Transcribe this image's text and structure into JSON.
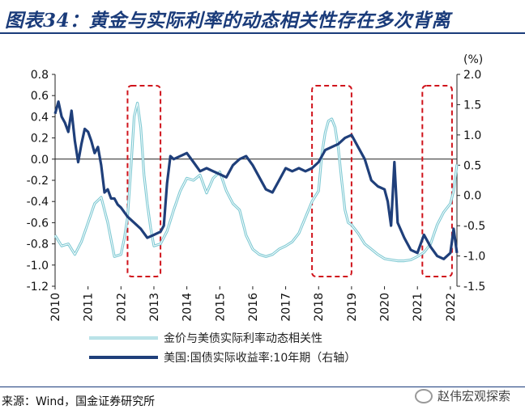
{
  "title": "图表34：黄金与实际利率的动态相关性存在多次背离",
  "source": "来源：Wind，国金证券研究所",
  "watermark": "赵伟宏观探索",
  "colors": {
    "corr": "#7ec9d3",
    "yield": "#1f3f7a",
    "box": "#d0141c",
    "title": "#1a3b7a"
  },
  "chart_data": {
    "type": "line",
    "title": "",
    "unit_right": "(%)",
    "x_ticks": [
      "2010",
      "2011",
      "2012",
      "2013",
      "2014",
      "2015",
      "2016",
      "2017",
      "2018",
      "2019",
      "2020",
      "2021",
      "2022"
    ],
    "left_ylim": [
      -1.2,
      0.8
    ],
    "left_ticks": [
      "0.8",
      "0.6",
      "0.4",
      "0.2",
      "0.0",
      "-0.2",
      "-0.4",
      "-0.6",
      "-0.8",
      "-1.0",
      "-1.2"
    ],
    "right_ylim": [
      -1.5,
      2.0
    ],
    "right_ticks": [
      "2.0",
      "1.5",
      "1.0",
      "0.5",
      "0.0",
      "-0.5",
      "-1.0",
      "-1.5"
    ],
    "series": [
      {
        "name": "金价与美债实际利率动态相关性",
        "axis": "left",
        "x": [
          2010.0,
          2010.2,
          2010.4,
          2010.6,
          2010.8,
          2011.0,
          2011.2,
          2011.4,
          2011.6,
          2011.8,
          2012.0,
          2012.1,
          2012.2,
          2012.3,
          2012.4,
          2012.5,
          2012.6,
          2012.7,
          2012.8,
          2012.9,
          2013.0,
          2013.2,
          2013.4,
          2013.6,
          2013.8,
          2014.0,
          2014.2,
          2014.4,
          2014.6,
          2014.8,
          2015.0,
          2015.2,
          2015.4,
          2015.6,
          2015.8,
          2016.0,
          2016.2,
          2016.4,
          2016.6,
          2016.8,
          2017.0,
          2017.2,
          2017.4,
          2017.6,
          2017.8,
          2018.0,
          2018.1,
          2018.2,
          2018.3,
          2018.4,
          2018.5,
          2018.6,
          2018.7,
          2018.8,
          2018.9,
          2019.0,
          2019.2,
          2019.4,
          2019.6,
          2019.8,
          2020.0,
          2020.2,
          2020.4,
          2020.6,
          2020.8,
          2021.0,
          2021.2,
          2021.4,
          2021.6,
          2021.8,
          2022.0,
          2022.1,
          2022.2
        ],
        "values": [
          -0.72,
          -0.82,
          -0.8,
          -0.9,
          -0.78,
          -0.6,
          -0.42,
          -0.36,
          -0.6,
          -0.92,
          -0.9,
          -0.75,
          -0.55,
          -0.1,
          0.4,
          0.53,
          0.3,
          -0.15,
          -0.42,
          -0.65,
          -0.82,
          -0.8,
          -0.68,
          -0.48,
          -0.3,
          -0.18,
          -0.2,
          -0.15,
          -0.32,
          -0.18,
          -0.12,
          -0.3,
          -0.42,
          -0.48,
          -0.72,
          -0.85,
          -0.9,
          -0.92,
          -0.9,
          -0.85,
          -0.82,
          -0.78,
          -0.7,
          -0.55,
          -0.4,
          -0.3,
          0.05,
          0.25,
          0.36,
          0.38,
          0.3,
          0.1,
          -0.2,
          -0.48,
          -0.6,
          -0.62,
          -0.7,
          -0.8,
          -0.85,
          -0.9,
          -0.94,
          -0.95,
          -0.96,
          -0.96,
          -0.95,
          -0.92,
          -0.88,
          -0.8,
          -0.62,
          -0.5,
          -0.42,
          -0.3,
          -0.05
        ]
      },
      {
        "name": "美国:国债实际收益率:10年期（右轴）",
        "axis": "right",
        "x": [
          2010.0,
          2010.1,
          2010.2,
          2010.3,
          2010.4,
          2010.5,
          2010.6,
          2010.7,
          2010.8,
          2010.9,
          2011.0,
          2011.1,
          2011.2,
          2011.3,
          2011.4,
          2011.5,
          2011.6,
          2011.7,
          2011.8,
          2011.9,
          2012.0,
          2012.2,
          2012.4,
          2012.6,
          2012.8,
          2013.0,
          2013.2,
          2013.3,
          2013.4,
          2013.5,
          2013.6,
          2013.8,
          2014.0,
          2014.2,
          2014.4,
          2014.6,
          2014.8,
          2015.0,
          2015.2,
          2015.4,
          2015.6,
          2015.8,
          2016.0,
          2016.2,
          2016.4,
          2016.6,
          2016.8,
          2017.0,
          2017.2,
          2017.4,
          2017.6,
          2017.8,
          2018.0,
          2018.2,
          2018.4,
          2018.6,
          2018.8,
          2019.0,
          2019.2,
          2019.4,
          2019.6,
          2019.8,
          2020.0,
          2020.1,
          2020.2,
          2020.3,
          2020.4,
          2020.6,
          2020.8,
          2021.0,
          2021.2,
          2021.4,
          2021.6,
          2021.8,
          2022.0,
          2022.1,
          2022.2
        ],
        "values": [
          1.35,
          1.55,
          1.3,
          1.2,
          1.05,
          1.4,
          0.9,
          0.55,
          0.85,
          1.1,
          1.05,
          0.9,
          0.7,
          0.8,
          0.5,
          0.05,
          0.1,
          -0.05,
          -0.05,
          -0.15,
          -0.2,
          -0.35,
          -0.45,
          -0.55,
          -0.7,
          -0.65,
          -0.6,
          -0.5,
          0.2,
          0.65,
          0.6,
          0.65,
          0.7,
          0.55,
          0.4,
          0.45,
          0.4,
          0.35,
          0.3,
          0.5,
          0.6,
          0.65,
          0.5,
          0.3,
          0.1,
          0.05,
          0.25,
          0.45,
          0.4,
          0.45,
          0.4,
          0.45,
          0.55,
          0.75,
          0.8,
          0.85,
          0.95,
          1.0,
          0.8,
          0.6,
          0.25,
          0.15,
          0.1,
          -0.1,
          -0.5,
          0.55,
          -0.45,
          -0.7,
          -0.9,
          -0.95,
          -0.65,
          -0.85,
          -1.0,
          -1.05,
          -0.95,
          -0.55,
          -0.95
        ]
      }
    ],
    "legend_placement": "bottom",
    "highlight_periods": [
      [
        2012.2,
        2013.2
      ],
      [
        2017.8,
        2019.0
      ],
      [
        2021.15,
        2022.05
      ]
    ]
  }
}
